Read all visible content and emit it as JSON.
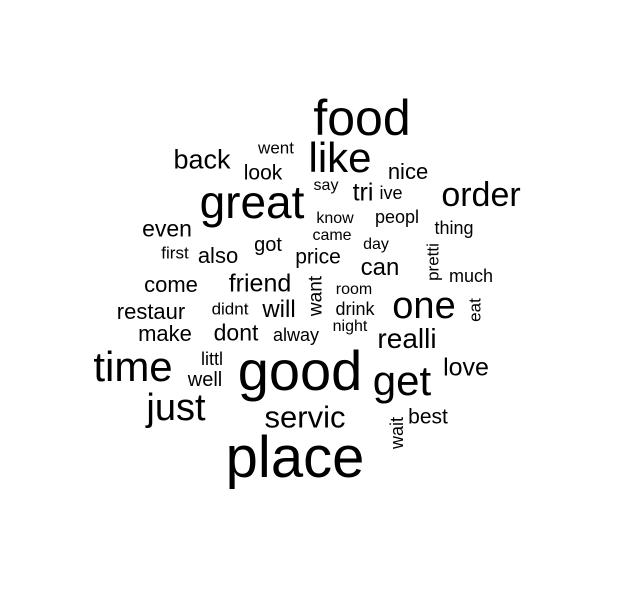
{
  "words": [
    "place",
    "good",
    "food",
    "great",
    "time",
    "get",
    "like",
    "just",
    "one",
    "order",
    "servic",
    "realli",
    "back",
    "love",
    "friend",
    "tri",
    "will",
    "can",
    "even",
    "restaur",
    "come",
    "make",
    "dont",
    "also",
    "price",
    "nice",
    "best",
    "look",
    "got",
    "well",
    "peopl",
    "thing",
    "want",
    "pretti",
    "wait",
    "went",
    "ive",
    "much",
    "first",
    "didnt",
    "alway",
    "drink",
    "eat",
    "littl",
    "say",
    "know",
    "came",
    "day",
    "room",
    "night"
  ],
  "colors": {
    "text": "#000000",
    "background": "#ffffff"
  }
}
